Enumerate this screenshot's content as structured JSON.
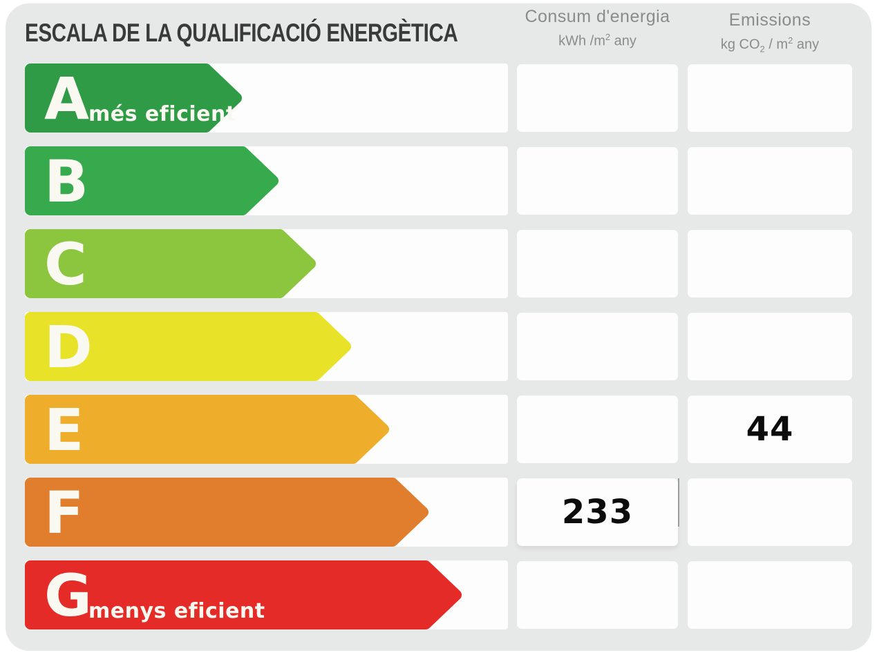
{
  "title": "ESCALA DE LA QUALIFICACIÓ ENERGÈTICA",
  "background_color": "#e7e8e8",
  "header": {
    "energy": {
      "label": "Consum d'energia",
      "unit_a": "kWh /m",
      "unit_sup": "2",
      "unit_b": " any"
    },
    "emissions": {
      "label": "Emissions",
      "unit_a": "kg CO",
      "unit_sub": "2",
      "unit_b": " / m",
      "unit_sup": "2",
      "unit_c": " any"
    }
  },
  "ratings": [
    {
      "letter": "A",
      "tagline": "més eficient",
      "color": "#2f9b46",
      "arrow_width": 314,
      "energy": "",
      "emissions": "",
      "energy_cell_highlight": false
    },
    {
      "letter": "B",
      "tagline": "",
      "color": "#36aa4d",
      "arrow_width": 367,
      "energy": "",
      "emissions": "",
      "energy_cell_highlight": false
    },
    {
      "letter": "C",
      "tagline": "",
      "color": "#8cc63f",
      "arrow_width": 421,
      "energy": "",
      "emissions": "",
      "energy_cell_highlight": false
    },
    {
      "letter": "D",
      "tagline": "",
      "color": "#e8e228",
      "arrow_width": 472,
      "energy": "",
      "emissions": "",
      "energy_cell_highlight": false
    },
    {
      "letter": "E",
      "tagline": "",
      "color": "#eead2b",
      "arrow_width": 527,
      "energy": "",
      "emissions": "44",
      "energy_cell_highlight": false
    },
    {
      "letter": "F",
      "tagline": "",
      "color": "#e07e2d",
      "arrow_width": 584,
      "energy": "233",
      "emissions": "",
      "energy_cell_highlight": true
    },
    {
      "letter": "G",
      "tagline": "menys eficient",
      "color": "#e42b27",
      "arrow_width": 632,
      "energy": "",
      "emissions": "",
      "energy_cell_highlight": false
    }
  ],
  "chart_data": {
    "type": "table",
    "title": "ESCALA DE LA QUALIFICACIÓ ENERGÈTICA",
    "categories": [
      "A",
      "B",
      "C",
      "D",
      "E",
      "F",
      "G"
    ],
    "series": [
      {
        "name": "Consum d'energia kWh/m2 any",
        "values": [
          null,
          null,
          null,
          null,
          null,
          233,
          null
        ]
      },
      {
        "name": "Emissions kg CO2/m2 any",
        "values": [
          null,
          null,
          null,
          null,
          44,
          null,
          null
        ]
      }
    ],
    "annotations": [
      "A = més eficient",
      "G = menys eficient"
    ],
    "legend_position": "none",
    "grid": false
  }
}
